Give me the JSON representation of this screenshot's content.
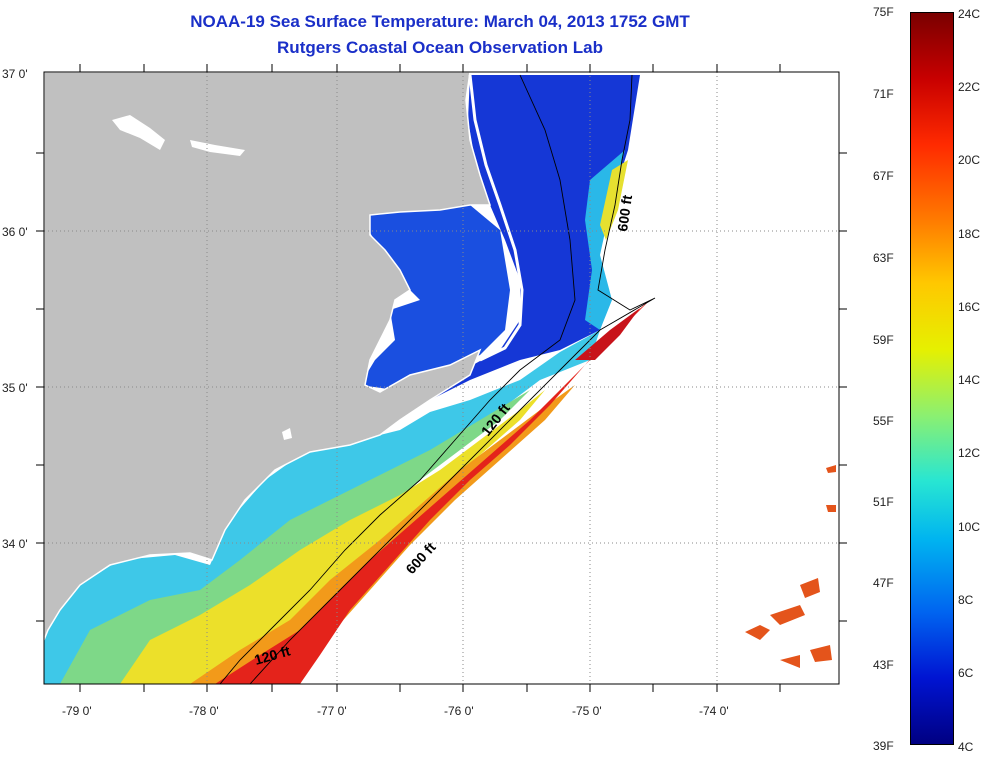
{
  "title": {
    "line1": "NOAA-19 Sea Surface Temperature:  March 04, 2013 1752 GMT",
    "line2": "Rutgers Coastal Ocean Observation Lab"
  },
  "map": {
    "lat_labels": [
      "37 0'",
      "36 0'",
      "35 0'",
      "34 0'"
    ],
    "lon_labels": [
      "-79 0'",
      "-78 0'",
      "-77 0'",
      "-76 0'",
      "-75 0'",
      "-74 0'"
    ],
    "contour_labels": {
      "c600_north": "600 ft",
      "c120_mid": "120 ft",
      "c600_south": "600 ft",
      "c120_south": "120 ft"
    },
    "colors": {
      "land": "#c0c0c0",
      "ocean_background": "#ffffff",
      "contour": "#000000"
    }
  },
  "colorbar": {
    "fahrenheit": [
      "75F",
      "71F",
      "67F",
      "63F",
      "59F",
      "55F",
      "51F",
      "47F",
      "43F",
      "39F"
    ],
    "celsius": [
      "24C",
      "22C",
      "20C",
      "18C",
      "16C",
      "14C",
      "12C",
      "10C",
      "8C",
      "6C",
      "4C"
    ]
  }
}
